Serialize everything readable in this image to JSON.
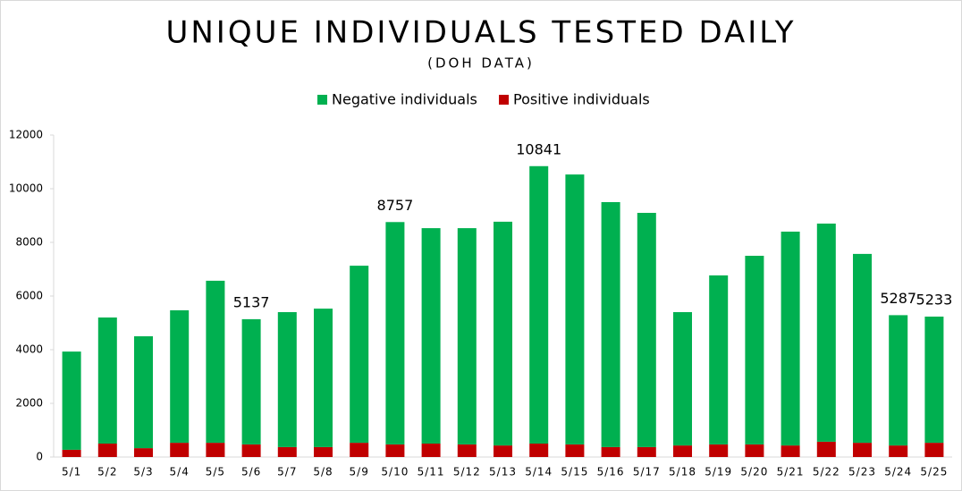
{
  "chart_data": {
    "type": "stacked_bar",
    "title": "UNIQUE INDIVIDUALS TESTED DAILY",
    "subtitle": "(DOH DATA)",
    "categories": [
      "5/1",
      "5/2",
      "5/3",
      "5/4",
      "5/5",
      "5/6",
      "5/7",
      "5/8",
      "5/9",
      "5/10",
      "5/11",
      "5/12",
      "5/13",
      "5/14",
      "5/15",
      "5/16",
      "5/17",
      "5/18",
      "5/19",
      "5/20",
      "5/21",
      "5/22",
      "5/23",
      "5/24",
      "5/25"
    ],
    "series": [
      {
        "name": "Negative individuals",
        "color": "#00b050",
        "values": [
          3660,
          4700,
          4170,
          4940,
          6040,
          4667,
          5030,
          5160,
          6600,
          8287,
          8030,
          8060,
          8340,
          10341,
          10060,
          9130,
          8730,
          4970,
          6300,
          7030,
          7970,
          8130,
          7040,
          4857,
          4703
        ]
      },
      {
        "name": "Positive individuals",
        "color": "#c00000",
        "values": [
          270,
          500,
          330,
          530,
          530,
          470,
          370,
          370,
          530,
          470,
          500,
          470,
          430,
          500,
          470,
          370,
          370,
          430,
          470,
          470,
          430,
          570,
          530,
          430,
          530
        ]
      }
    ],
    "totals": [
      null,
      null,
      null,
      null,
      null,
      5137,
      null,
      null,
      null,
      8757,
      null,
      null,
      null,
      10841,
      null,
      null,
      null,
      null,
      null,
      null,
      null,
      null,
      null,
      5287,
      5233
    ],
    "ylim": [
      0,
      12000
    ],
    "yticks": [
      0,
      2000,
      4000,
      6000,
      8000,
      10000,
      12000
    ],
    "grid": false,
    "legend": "top"
  }
}
